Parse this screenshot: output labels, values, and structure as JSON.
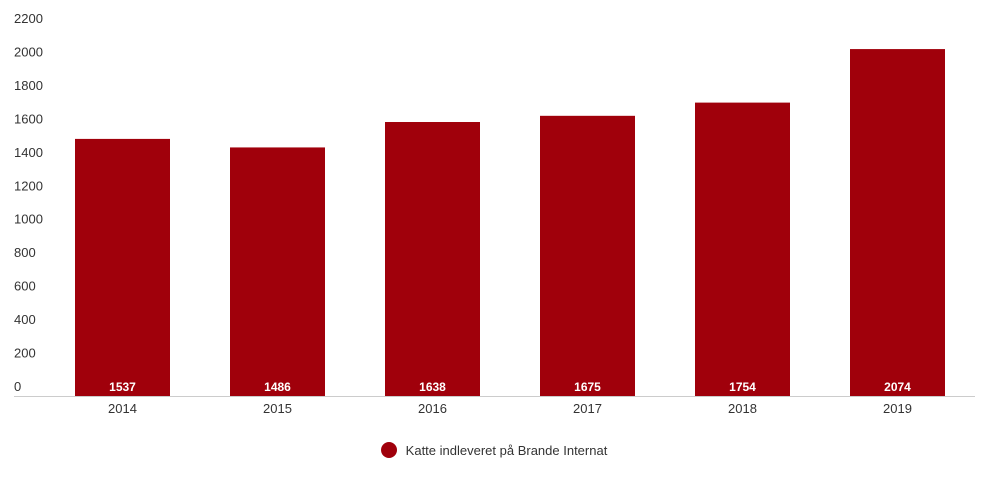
{
  "chart_data": {
    "type": "bar",
    "categories": [
      "2014",
      "2015",
      "2016",
      "2017",
      "2018",
      "2019"
    ],
    "series": [
      {
        "name": "Katte indleveret på Brande Internat",
        "values": [
          1537,
          1486,
          1638,
          1675,
          1754,
          2074
        ]
      }
    ],
    "ylim": [
      0,
      2200
    ],
    "yticks": [
      0,
      200,
      400,
      600,
      800,
      1000,
      1200,
      1400,
      1600,
      1800,
      2000,
      2200
    ],
    "grid": false,
    "legend_position": "bottom-center",
    "data_labels": [
      "1537",
      "1486",
      "1638",
      "1675",
      "1754",
      "2074"
    ],
    "bar_color": "#a0000b"
  }
}
